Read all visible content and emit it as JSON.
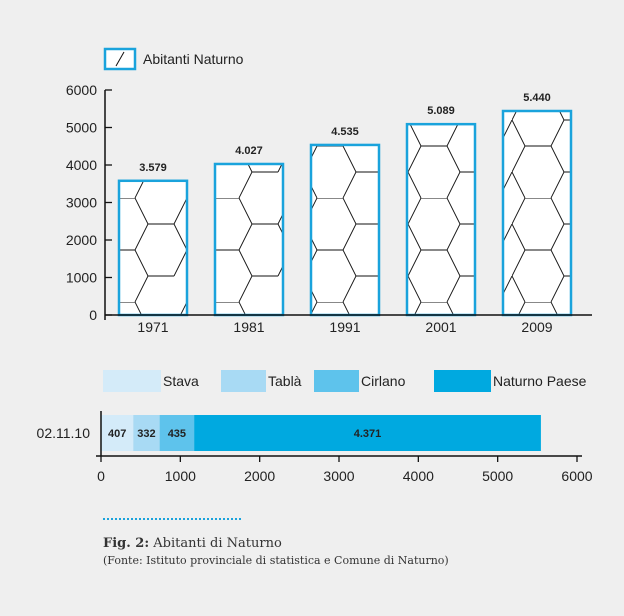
{
  "chart_data": [
    {
      "type": "bar",
      "legend": [
        "Abitanti Naturno"
      ],
      "categories": [
        "1971",
        "1981",
        "1991",
        "2001",
        "2009"
      ],
      "values": [
        3579,
        4027,
        4535,
        5089,
        5440
      ],
      "value_labels": [
        "3.579",
        "4.027",
        "4.535",
        "5.089",
        "5.440"
      ],
      "ylim": [
        0,
        6000
      ],
      "yticks": [
        "0",
        "1000",
        "2000",
        "3000",
        "4000",
        "5000",
        "6000"
      ],
      "bar_color": "#1aa3dc",
      "pattern": "hexagon-icon",
      "grid": false
    },
    {
      "type": "bar",
      "orientation": "horizontal",
      "stacked": true,
      "categories": [
        "02.11.10"
      ],
      "series": [
        {
          "name": "Stava",
          "values": [
            407
          ],
          "label": "407",
          "color": "#d4ebf9"
        },
        {
          "name": "Tablà",
          "values": [
            332
          ],
          "label": "332",
          "color": "#a8daf4"
        },
        {
          "name": "Cirlano",
          "values": [
            435
          ],
          "label": "435",
          "color": "#5ec3ec"
        },
        {
          "name": "Naturno Paese",
          "values": [
            4371
          ],
          "label": "4.371",
          "color": "#00a9e0"
        }
      ],
      "xlim": [
        0,
        6000
      ],
      "xticks": [
        "0",
        "1000",
        "2000",
        "3000",
        "4000",
        "5000",
        "6000"
      ],
      "grid": false
    }
  ],
  "caption": {
    "label": "Fig. 2:",
    "title": "Abitanti di Naturno",
    "source": "(Fonte: Istituto provinciale di statistica e Comune di Naturno)"
  }
}
